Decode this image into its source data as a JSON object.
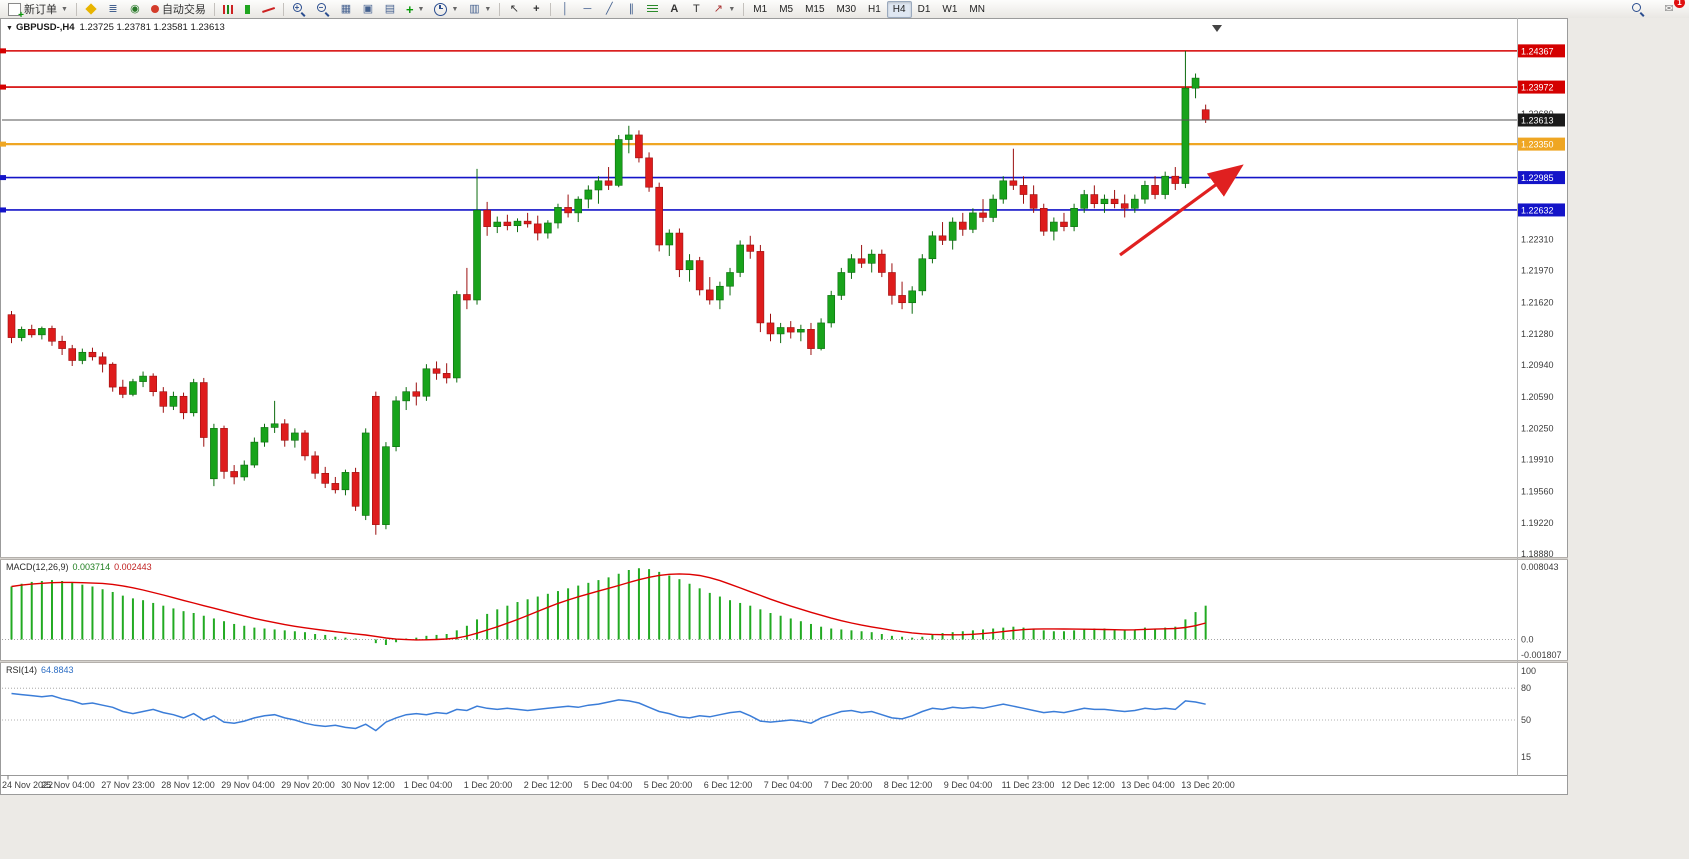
{
  "toolbar": {
    "new_order_label": "新订单",
    "auto_trading_label": "自动交易",
    "timeframes": [
      "M1",
      "M5",
      "M15",
      "M30",
      "H1",
      "H4",
      "D1",
      "W1",
      "MN"
    ],
    "active_timeframe": "H4",
    "notification_badge": "1"
  },
  "chart": {
    "title": "GBPUSD-,H4",
    "ohlc_display": "1.23725 1.23781 1.23581 1.23613"
  },
  "chart_data": {
    "type": "candlestick",
    "symbol": "GBPUSD",
    "period": "H4",
    "current_bar": {
      "open": 1.23725,
      "high": 1.23781,
      "low": 1.23581,
      "close": 1.23613
    },
    "price_axis": {
      "min": 1.18858,
      "max": 1.2466,
      "ticks": [
        "1.23680",
        "1.23340",
        "1.22310",
        "1.21970",
        "1.21620",
        "1.21280",
        "1.20940",
        "1.20590",
        "1.20250",
        "1.19910",
        "1.19560",
        "1.19220",
        "1.18880"
      ]
    },
    "levels": [
      {
        "value": 1.24367,
        "label": "1.24367",
        "color": "#d40000",
        "width": 1.6
      },
      {
        "value": 1.23972,
        "label": "1.23972",
        "color": "#d40000",
        "width": 1.6
      },
      {
        "value": 1.2335,
        "label": "1.23350",
        "color": "#efa623",
        "width": 2.2
      },
      {
        "value": 1.22985,
        "label": "1.22985",
        "color": "#1414c8",
        "width": 1.6
      },
      {
        "value": 1.22632,
        "label": "1.22632",
        "color": "#1414c8",
        "width": 1.6
      }
    ],
    "current_price": {
      "value": 1.23613,
      "label": "1.23613",
      "color": "#1a1a1a"
    },
    "candle_colors": {
      "up": "#18a31b",
      "down": "#de1c1c"
    },
    "trend_arrow": {
      "color": "#e02020"
    },
    "time_labels": [
      "24 Nov 2022",
      "25 Nov 04:00",
      "27 Nov 23:00",
      "28 Nov 12:00",
      "29 Nov 04:00",
      "29 Nov 20:00",
      "30 Nov 12:00",
      "1 Dec 04:00",
      "1 Dec 20:00",
      "2 Dec 12:00",
      "5 Dec 04:00",
      "5 Dec 20:00",
      "6 Dec 12:00",
      "7 Dec 04:00",
      "7 Dec 20:00",
      "8 Dec 12:00",
      "9 Dec 04:00",
      "11 Dec 23:00",
      "12 Dec 12:00",
      "13 Dec 04:00",
      "13 Dec 20:00"
    ],
    "candles": [
      [
        1.2149,
        1.2153,
        1.2118,
        1.2124
      ],
      [
        1.2124,
        1.2136,
        1.212,
        1.2133
      ],
      [
        1.2133,
        1.2138,
        1.2124,
        1.2127
      ],
      [
        1.2127,
        1.2136,
        1.2122,
        1.2134
      ],
      [
        1.2134,
        1.2137,
        1.2115,
        1.212
      ],
      [
        1.212,
        1.2126,
        1.2105,
        1.2112
      ],
      [
        1.2112,
        1.2116,
        1.2093,
        1.2099
      ],
      [
        1.2099,
        1.2112,
        1.2095,
        1.2108
      ],
      [
        1.2108,
        1.2113,
        1.2099,
        1.2103
      ],
      [
        1.2103,
        1.2108,
        1.2086,
        1.2095
      ],
      [
        1.2095,
        1.2097,
        1.2065,
        1.207
      ],
      [
        1.207,
        1.2078,
        1.2058,
        1.2062
      ],
      [
        1.2062,
        1.2079,
        1.206,
        1.2076
      ],
      [
        1.2076,
        1.2087,
        1.207,
        1.2082
      ],
      [
        1.2082,
        1.2085,
        1.206,
        1.2065
      ],
      [
        1.2065,
        1.207,
        1.2042,
        1.2049
      ],
      [
        1.2049,
        1.2065,
        1.2045,
        1.206
      ],
      [
        1.206,
        1.2064,
        1.2035,
        1.2042
      ],
      [
        1.2042,
        1.2079,
        1.2038,
        1.2075
      ],
      [
        1.2075,
        1.208,
        1.2005,
        1.2015
      ],
      [
        1.197,
        1.203,
        1.1962,
        1.2025
      ],
      [
        1.2025,
        1.2028,
        1.197,
        1.1978
      ],
      [
        1.1978,
        1.1985,
        1.1964,
        1.1972
      ],
      [
        1.1972,
        1.199,
        1.1968,
        1.1985
      ],
      [
        1.1985,
        1.2015,
        1.1982,
        1.201
      ],
      [
        1.201,
        1.203,
        1.2005,
        1.2026
      ],
      [
        1.2026,
        1.2055,
        1.202,
        1.203
      ],
      [
        1.203,
        1.2035,
        1.2005,
        1.2012
      ],
      [
        1.2012,
        1.2025,
        1.2004,
        1.202
      ],
      [
        1.202,
        1.2023,
        1.199,
        1.1995
      ],
      [
        1.1995,
        1.2,
        1.197,
        1.1976
      ],
      [
        1.1976,
        1.1983,
        1.196,
        1.1965
      ],
      [
        1.1965,
        1.1972,
        1.1954,
        1.1958
      ],
      [
        1.1958,
        1.198,
        1.1952,
        1.1977
      ],
      [
        1.1977,
        1.1982,
        1.1935,
        1.194
      ],
      [
        1.193,
        1.2025,
        1.1925,
        1.202
      ],
      [
        1.206,
        1.2065,
        1.1909,
        1.192
      ],
      [
        1.192,
        1.201,
        1.1915,
        1.2005
      ],
      [
        1.2005,
        1.206,
        1.2,
        1.2055
      ],
      [
        1.2055,
        1.207,
        1.2045,
        1.2065
      ],
      [
        1.2065,
        1.2075,
        1.205,
        1.206
      ],
      [
        1.206,
        1.2095,
        1.2055,
        1.209
      ],
      [
        1.209,
        1.2098,
        1.2078,
        1.2085
      ],
      [
        1.2085,
        1.2096,
        1.2074,
        1.208
      ],
      [
        1.208,
        1.2175,
        1.2075,
        1.2171
      ],
      [
        1.2171,
        1.22,
        1.2155,
        1.2165
      ],
      [
        1.2165,
        1.2308,
        1.216,
        1.2263
      ],
      [
        1.2263,
        1.2272,
        1.2235,
        1.2245
      ],
      [
        1.2245,
        1.2256,
        1.2238,
        1.225
      ],
      [
        1.225,
        1.2258,
        1.2241,
        1.2246
      ],
      [
        1.2246,
        1.2254,
        1.2239,
        1.2251
      ],
      [
        1.2251,
        1.226,
        1.2244,
        1.2248
      ],
      [
        1.2248,
        1.2257,
        1.223,
        1.2238
      ],
      [
        1.2238,
        1.2252,
        1.2232,
        1.2249
      ],
      [
        1.2249,
        1.227,
        1.2243,
        1.2266
      ],
      [
        1.2266,
        1.228,
        1.2255,
        1.226
      ],
      [
        1.226,
        1.2278,
        1.225,
        1.2275
      ],
      [
        1.2275,
        1.229,
        1.2265,
        1.2285
      ],
      [
        1.2285,
        1.23,
        1.227,
        1.2295
      ],
      [
        1.2295,
        1.231,
        1.2285,
        1.229
      ],
      [
        1.229,
        1.2345,
        1.2288,
        1.234
      ],
      [
        1.234,
        1.2355,
        1.2325,
        1.2345
      ],
      [
        1.2345,
        1.235,
        1.2315,
        1.232
      ],
      [
        1.232,
        1.2326,
        1.2283,
        1.2288
      ],
      [
        1.2288,
        1.2293,
        1.2218,
        1.2225
      ],
      [
        1.2225,
        1.2242,
        1.2213,
        1.2238
      ],
      [
        1.2238,
        1.2243,
        1.219,
        1.2198
      ],
      [
        1.2198,
        1.2215,
        1.2185,
        1.2208
      ],
      [
        1.2208,
        1.2212,
        1.217,
        1.2176
      ],
      [
        1.2176,
        1.219,
        1.216,
        1.2165
      ],
      [
        1.2165,
        1.2185,
        1.2155,
        1.218
      ],
      [
        1.218,
        1.22,
        1.217,
        1.2195
      ],
      [
        1.2195,
        1.223,
        1.219,
        1.2225
      ],
      [
        1.2225,
        1.2235,
        1.221,
        1.2218
      ],
      [
        1.2218,
        1.2225,
        1.213,
        1.214
      ],
      [
        1.214,
        1.215,
        1.212,
        1.2128
      ],
      [
        1.2128,
        1.214,
        1.2118,
        1.2135
      ],
      [
        1.2135,
        1.2142,
        1.2123,
        1.213
      ],
      [
        1.213,
        1.2138,
        1.212,
        1.2133
      ],
      [
        1.2133,
        1.214,
        1.2105,
        1.2112
      ],
      [
        1.2112,
        1.2145,
        1.211,
        1.214
      ],
      [
        1.214,
        1.2175,
        1.2135,
        1.217
      ],
      [
        1.217,
        1.22,
        1.2165,
        1.2195
      ],
      [
        1.2195,
        1.2215,
        1.2188,
        1.221
      ],
      [
        1.221,
        1.2225,
        1.22,
        1.2205
      ],
      [
        1.2205,
        1.222,
        1.2195,
        1.2215
      ],
      [
        1.2215,
        1.222,
        1.219,
        1.2195
      ],
      [
        1.2195,
        1.2205,
        1.216,
        1.217
      ],
      [
        1.217,
        1.2185,
        1.2155,
        1.2162
      ],
      [
        1.2162,
        1.218,
        1.215,
        1.2175
      ],
      [
        1.2175,
        1.2215,
        1.217,
        1.221
      ],
      [
        1.221,
        1.224,
        1.2205,
        1.2235
      ],
      [
        1.2235,
        1.225,
        1.2225,
        1.223
      ],
      [
        1.223,
        1.2255,
        1.222,
        1.225
      ],
      [
        1.225,
        1.226,
        1.2235,
        1.2242
      ],
      [
        1.2242,
        1.2265,
        1.2238,
        1.226
      ],
      [
        1.226,
        1.2275,
        1.225,
        1.2255
      ],
      [
        1.2255,
        1.228,
        1.225,
        1.2275
      ],
      [
        1.2275,
        1.23,
        1.227,
        1.2295
      ],
      [
        1.2295,
        1.233,
        1.2285,
        1.229
      ],
      [
        1.229,
        1.23,
        1.227,
        1.228
      ],
      [
        1.228,
        1.229,
        1.226,
        1.2265
      ],
      [
        1.2265,
        1.227,
        1.2235,
        1.224
      ],
      [
        1.224,
        1.2255,
        1.223,
        1.225
      ],
      [
        1.225,
        1.226,
        1.224,
        1.2245
      ],
      [
        1.2245,
        1.227,
        1.224,
        1.2265
      ],
      [
        1.2265,
        1.2285,
        1.226,
        1.228
      ],
      [
        1.228,
        1.229,
        1.2265,
        1.227
      ],
      [
        1.227,
        1.228,
        1.226,
        1.2275
      ],
      [
        1.2275,
        1.2285,
        1.2265,
        1.227
      ],
      [
        1.227,
        1.228,
        1.2255,
        1.2265
      ],
      [
        1.2265,
        1.228,
        1.226,
        1.2275
      ],
      [
        1.2275,
        1.2295,
        1.227,
        1.229
      ],
      [
        1.229,
        1.23,
        1.2275,
        1.228
      ],
      [
        1.228,
        1.2305,
        1.2275,
        1.23
      ],
      [
        1.23,
        1.231,
        1.2285,
        1.2292
      ],
      [
        1.2292,
        1.24367,
        1.2287,
        1.2396
      ],
      [
        1.2396,
        1.2412,
        1.2385,
        1.2407
      ],
      [
        1.23725,
        1.23781,
        1.23581,
        1.23613
      ]
    ],
    "macd": {
      "label": "MACD(12,26,9)",
      "value_main": "0.003714",
      "value_signal": "0.002443",
      "scale_max": "0.008043",
      "scale_zero": "0.0",
      "scale_min": "-0.001807",
      "hist_color": "#22aa22",
      "signal_color": "#dd0000",
      "histogram": [
        0.0058,
        0.0061,
        0.0063,
        0.0064,
        0.0065,
        0.0064,
        0.0062,
        0.006,
        0.0058,
        0.0055,
        0.0052,
        0.0048,
        0.0045,
        0.0043,
        0.004,
        0.0037,
        0.0034,
        0.0031,
        0.0029,
        0.0026,
        0.0023,
        0.002,
        0.0017,
        0.0015,
        0.0013,
        0.0012,
        0.0011,
        0.001,
        0.0009,
        0.0008,
        0.0006,
        0.0005,
        0.0003,
        0.0002,
        0.0001,
        0.0,
        -0.0004,
        -0.0006,
        -0.0003,
        0.0001,
        0.0002,
        0.0004,
        0.0005,
        0.0006,
        0.001,
        0.0015,
        0.0022,
        0.0028,
        0.0033,
        0.0037,
        0.0041,
        0.0044,
        0.0047,
        0.005,
        0.0053,
        0.0056,
        0.0059,
        0.0062,
        0.0065,
        0.0068,
        0.0072,
        0.0076,
        0.0078,
        0.0077,
        0.0074,
        0.007,
        0.0066,
        0.0061,
        0.0056,
        0.0051,
        0.0047,
        0.0043,
        0.004,
        0.0037,
        0.0033,
        0.0029,
        0.0026,
        0.0023,
        0.002,
        0.0017,
        0.0014,
        0.0012,
        0.0011,
        0.001,
        0.0009,
        0.0008,
        0.0006,
        0.0004,
        0.0003,
        0.0002,
        0.0003,
        0.0005,
        0.0007,
        0.0008,
        0.0009,
        0.001,
        0.0011,
        0.0012,
        0.0013,
        0.0014,
        0.0013,
        0.0012,
        0.001,
        0.0009,
        0.0009,
        0.001,
        0.0011,
        0.0012,
        0.0012,
        0.0011,
        0.001,
        0.0011,
        0.0013,
        0.0012,
        0.0013,
        0.0014,
        0.0022,
        0.003,
        0.0037
      ]
    },
    "rsi": {
      "label": "RSI(14)",
      "value": "64.8843",
      "line_color": "#3b7dd8",
      "scale_labels": [
        "100",
        "80",
        "50",
        "15"
      ],
      "values": [
        75,
        74,
        73,
        72,
        73,
        70,
        68,
        65,
        66,
        64,
        62,
        58,
        56,
        58,
        60,
        57,
        55,
        52,
        56,
        50,
        54,
        48,
        47,
        49,
        52,
        54,
        55,
        52,
        50,
        47,
        45,
        44,
        45,
        43,
        42,
        46,
        40,
        48,
        52,
        55,
        56,
        55,
        57,
        56,
        60,
        59,
        63,
        61,
        60,
        61,
        60,
        59,
        60,
        61,
        62,
        63,
        62,
        64,
        65,
        67,
        69,
        68,
        66,
        62,
        58,
        56,
        53,
        52,
        54,
        53,
        55,
        57,
        58,
        54,
        49,
        48,
        49,
        50,
        49,
        47,
        52,
        55,
        58,
        59,
        57,
        58,
        55,
        52,
        51,
        54,
        58,
        61,
        60,
        62,
        61,
        62,
        61,
        63,
        65,
        63,
        61,
        59,
        57,
        58,
        57,
        59,
        61,
        60,
        60,
        59,
        58,
        59,
        61,
        60,
        61,
        60,
        68,
        67,
        64.88
      ]
    }
  }
}
